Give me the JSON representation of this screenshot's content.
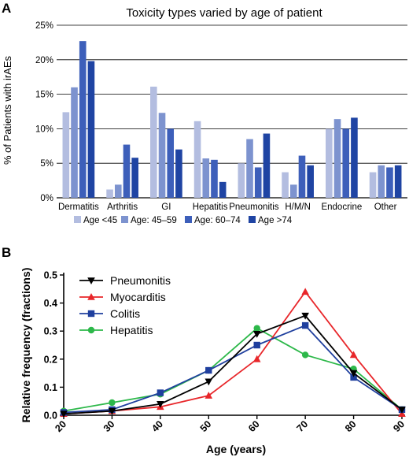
{
  "panel_a_letter": "A",
  "panel_b_letter": "B",
  "chart_data": [
    {
      "type": "bar",
      "title": "Toxicity types varied by age of patient",
      "xlabel": "",
      "ylabel": "% of Patients with irAEs",
      "ylim": [
        0,
        25
      ],
      "yticks": [
        "0%",
        "5%",
        "10%",
        "15%",
        "20%",
        "25%"
      ],
      "categories": [
        "Dermatitis",
        "Arthritis",
        "GI",
        "Hepatitis",
        "Pneumonitis",
        "H/M/N",
        "Endocrine",
        "Other"
      ],
      "series": [
        {
          "name": "Age <45",
          "color": "#b3bde0",
          "values": [
            12.4,
            1.2,
            16.1,
            11.1,
            5.0,
            3.7,
            10.0,
            3.7
          ]
        },
        {
          "name": "Age: 45–59",
          "color": "#7d93cf",
          "values": [
            16.0,
            1.9,
            12.3,
            5.7,
            8.5,
            1.9,
            11.4,
            4.7
          ]
        },
        {
          "name": "Age: 60–74",
          "color": "#3d5fba",
          "values": [
            22.7,
            7.7,
            10.0,
            5.5,
            4.4,
            6.1,
            10.0,
            4.4
          ]
        },
        {
          "name": "Age >74",
          "color": "#1f44a3",
          "values": [
            19.8,
            5.8,
            7.0,
            2.3,
            9.3,
            4.7,
            11.6,
            4.7
          ]
        }
      ],
      "grid": true,
      "legend_position": "bottom"
    },
    {
      "type": "line",
      "xlabel": "Age (years)",
      "ylabel": "Relative frequency (fractions)",
      "x": [
        20,
        30,
        40,
        50,
        60,
        70,
        80,
        90
      ],
      "xlim": [
        20,
        90
      ],
      "ylim": [
        0,
        0.5
      ],
      "yticks": [
        "0.0",
        "0.1",
        "0.2",
        "0.3",
        "0.4",
        "0.5"
      ],
      "series": [
        {
          "name": "Pneumonitis",
          "color": "#000000",
          "marker": "triangle-down",
          "values": [
            0.005,
            0.015,
            0.04,
            0.12,
            0.29,
            0.355,
            0.15,
            0.02
          ]
        },
        {
          "name": "Myocarditis",
          "color": "#e8262a",
          "marker": "triangle-up",
          "values": [
            0.005,
            0.015,
            0.03,
            0.07,
            0.2,
            0.44,
            0.215,
            0.005
          ]
        },
        {
          "name": "Colitis",
          "color": "#1f3f9e",
          "marker": "square",
          "values": [
            0.01,
            0.02,
            0.08,
            0.16,
            0.25,
            0.32,
            0.135,
            0.02
          ]
        },
        {
          "name": "Hepatitis",
          "color": "#2db84a",
          "marker": "circle",
          "values": [
            0.015,
            0.045,
            0.075,
            0.16,
            0.31,
            0.215,
            0.165,
            0.02
          ]
        }
      ],
      "grid": false,
      "legend_position": "top-left"
    }
  ]
}
